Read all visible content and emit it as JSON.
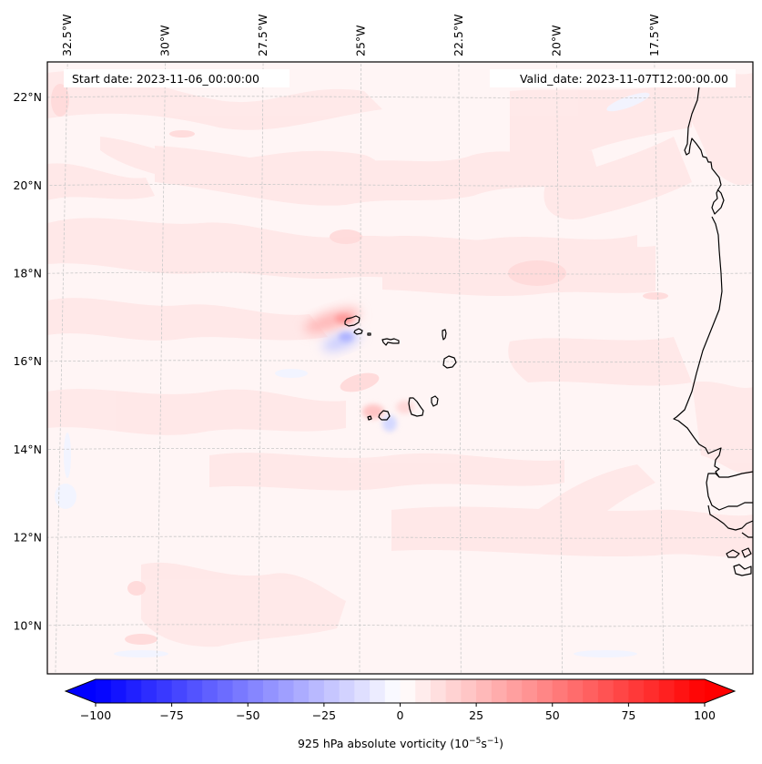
{
  "figure": {
    "start_date_label": "Start date: 2023-11-06_00:00:00",
    "valid_date_label": "Valid_date: 2023-11-07T12:00:00.00"
  },
  "map": {
    "projection": "Lambert conformal",
    "extent": {
      "lon_min": -32.7,
      "lon_max": -15.3,
      "lat_min": 8.9,
      "lat_max": 22.8
    },
    "background_color": "#fff5f5",
    "gridline_color": "#c8c8c8",
    "coastline_color": "#000000",
    "lon_ticks": [
      {
        "value": -32.5,
        "label": "32.5°W"
      },
      {
        "value": -30,
        "label": "30°W"
      },
      {
        "value": -27.5,
        "label": "27.5°W"
      },
      {
        "value": -25,
        "label": "25°W"
      },
      {
        "value": -22.5,
        "label": "22.5°W"
      },
      {
        "value": -20,
        "label": "20°W"
      },
      {
        "value": -17.5,
        "label": "17.5°W"
      }
    ],
    "lat_ticks": [
      {
        "value": 22,
        "label": "22°N"
      },
      {
        "value": 20,
        "label": "20°N"
      },
      {
        "value": 18,
        "label": "18°N"
      },
      {
        "value": 16,
        "label": "16°N"
      },
      {
        "value": 14,
        "label": "14°N"
      },
      {
        "value": 12,
        "label": "12°N"
      },
      {
        "value": 10,
        "label": "10°N"
      }
    ],
    "features": [
      {
        "name": "Cape Verde islands",
        "type": "coastline"
      },
      {
        "name": "West African coast (Mauritania, Senegal, Gambia, Guinea-Bissau)",
        "type": "coastline"
      }
    ],
    "anomalies": [
      {
        "name": "positive vorticity NW of Santo Antão",
        "lon": -24.9,
        "lat": 16.9,
        "value": 30
      },
      {
        "name": "negative vorticity lee of Santo Antão",
        "lon": -24.7,
        "lat": 16.6,
        "value": -15
      },
      {
        "name": "positive vorticity W of Fogo",
        "lon": -24.6,
        "lat": 14.9,
        "value": 20
      },
      {
        "name": "negative vorticity lee of Fogo",
        "lon": -24.3,
        "lat": 14.6,
        "value": -12
      }
    ]
  },
  "chart_data": {
    "type": "heatmap",
    "title": "",
    "variable": "925 hPa absolute vorticity",
    "units": "10^-5 s^-1",
    "colorbar": {
      "label_main": "925 hPa absolute vorticity (10",
      "label_exp1": "−5",
      "label_mid": "s",
      "label_exp2": "−1",
      "label_end": ")",
      "vmin": -100,
      "vmax": 100,
      "level_step": 5,
      "extend": "both",
      "colormap": "bwr",
      "orientation": "horizontal",
      "ticks": [
        {
          "value": -100,
          "label": "−100"
        },
        {
          "value": -75,
          "label": "−75"
        },
        {
          "value": -50,
          "label": "−50"
        },
        {
          "value": -25,
          "label": "−25"
        },
        {
          "value": 0,
          "label": "0"
        },
        {
          "value": 25,
          "label": "25"
        },
        {
          "value": 50,
          "label": "50"
        },
        {
          "value": 75,
          "label": "75"
        },
        {
          "value": 100,
          "label": "100"
        }
      ]
    },
    "typical_range": [
      -15,
      30
    ],
    "background_value_range": [
      0,
      10
    ]
  }
}
